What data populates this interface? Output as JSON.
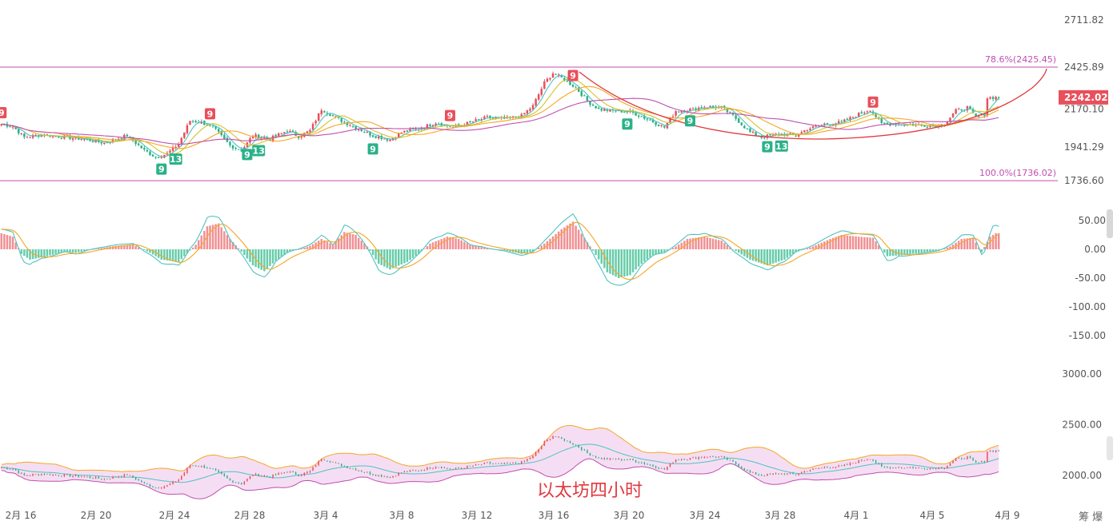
{
  "chart_data": [
    {
      "type": "candlestick",
      "title": "",
      "ylim": [
        1736.6,
        2711.82
      ],
      "yticks": [
        "2711.82",
        "2425.89",
        "2170.10",
        "1941.29",
        "1736.60"
      ],
      "current_price": "2242.02",
      "fib_levels": [
        {
          "label": "78.6%(2425.45)",
          "value": 2425.45
        },
        {
          "label": "100.0%(1736.02)",
          "value": 1736.02
        }
      ],
      "close_series_anchors": [
        [
          0,
          2080
        ],
        [
          4,
          2065
        ],
        [
          8,
          2000
        ],
        [
          14,
          2015
        ],
        [
          20,
          2005
        ],
        [
          28,
          1990
        ],
        [
          36,
          1965
        ],
        [
          44,
          2010
        ],
        [
          50,
          1920
        ],
        [
          54,
          1880
        ],
        [
          58,
          1900
        ],
        [
          62,
          1960
        ],
        [
          66,
          2100
        ],
        [
          70,
          2090
        ],
        [
          74,
          2060
        ],
        [
          80,
          1950
        ],
        [
          84,
          1920
        ],
        [
          88,
          2010
        ],
        [
          94,
          1990
        ],
        [
          100,
          2040
        ],
        [
          104,
          2005
        ],
        [
          108,
          2040
        ],
        [
          112,
          2170
        ],
        [
          116,
          2130
        ],
        [
          120,
          2090
        ],
        [
          124,
          2060
        ],
        [
          130,
          2010
        ],
        [
          136,
          1985
        ],
        [
          140,
          2030
        ],
        [
          146,
          2050
        ],
        [
          152,
          2090
        ],
        [
          158,
          2060
        ],
        [
          164,
          2090
        ],
        [
          170,
          2120
        ],
        [
          176,
          2110
        ],
        [
          182,
          2130
        ],
        [
          186,
          2190
        ],
        [
          190,
          2330
        ],
        [
          193,
          2390
        ],
        [
          197,
          2350
        ],
        [
          201,
          2300
        ],
        [
          205,
          2220
        ],
        [
          209,
          2170
        ],
        [
          214,
          2160
        ],
        [
          220,
          2155
        ],
        [
          226,
          2110
        ],
        [
          232,
          2060
        ],
        [
          236,
          2160
        ],
        [
          240,
          2165
        ],
        [
          246,
          2185
        ],
        [
          252,
          2180
        ],
        [
          256,
          2130
        ],
        [
          262,
          2030
        ],
        [
          266,
          2000
        ],
        [
          272,
          2020
        ],
        [
          278,
          2010
        ],
        [
          282,
          2050
        ],
        [
          288,
          2080
        ],
        [
          294,
          2090
        ],
        [
          300,
          2140
        ],
        [
          304,
          2170
        ],
        [
          308,
          2080
        ],
        [
          314,
          2080
        ],
        [
          320,
          2075
        ],
        [
          326,
          2070
        ],
        [
          330,
          2080
        ],
        [
          334,
          2160
        ],
        [
          338,
          2180
        ],
        [
          341,
          2120
        ],
        [
          344,
          2140
        ],
        [
          345,
          2240
        ],
        [
          348,
          2242
        ]
      ],
      "td_labels": [
        {
          "text": "9",
          "at": 0,
          "pos": "above"
        },
        {
          "text": "9",
          "at": 56,
          "pos": "below"
        },
        {
          "text": "13",
          "at": 61,
          "pos": "below"
        },
        {
          "text": "9",
          "at": 73,
          "pos": "above"
        },
        {
          "text": "9",
          "at": 86,
          "pos": "below"
        },
        {
          "text": "13",
          "at": 90,
          "pos": "below"
        },
        {
          "text": "9",
          "at": 130,
          "pos": "below"
        },
        {
          "text": "9",
          "at": 157,
          "pos": "above"
        },
        {
          "text": "9",
          "at": 200,
          "pos": "above"
        },
        {
          "text": "9",
          "at": 219,
          "pos": "below"
        },
        {
          "text": "9",
          "at": 241,
          "pos": "below"
        },
        {
          "text": "9",
          "at": 268,
          "pos": "below"
        },
        {
          "text": "13",
          "at": 273,
          "pos": "below"
        },
        {
          "text": "9",
          "at": 305,
          "pos": "above"
        }
      ]
    },
    {
      "type": "bar",
      "title": "",
      "ylim": [
        -150,
        50
      ],
      "yticks": [
        "50.00",
        "0.00",
        "-50.00",
        "-100.00",
        "-150.00"
      ],
      "histogram_anchors": [
        [
          0,
          28
        ],
        [
          4,
          22
        ],
        [
          7,
          -8
        ],
        [
          10,
          -18
        ],
        [
          16,
          -12
        ],
        [
          22,
          -4
        ],
        [
          26,
          -6
        ],
        [
          32,
          0
        ],
        [
          40,
          6
        ],
        [
          46,
          8
        ],
        [
          52,
          -6
        ],
        [
          56,
          -18
        ],
        [
          62,
          -22
        ],
        [
          68,
          8
        ],
        [
          72,
          40
        ],
        [
          76,
          45
        ],
        [
          80,
          18
        ],
        [
          84,
          -4
        ],
        [
          88,
          -28
        ],
        [
          92,
          -38
        ],
        [
          96,
          -20
        ],
        [
          100,
          -6
        ],
        [
          104,
          0
        ],
        [
          108,
          6
        ],
        [
          112,
          18
        ],
        [
          116,
          8
        ],
        [
          120,
          30
        ],
        [
          124,
          25
        ],
        [
          128,
          5
        ],
        [
          132,
          -25
        ],
        [
          136,
          -35
        ],
        [
          142,
          -22
        ],
        [
          146,
          -8
        ],
        [
          150,
          10
        ],
        [
          156,
          22
        ],
        [
          160,
          18
        ],
        [
          164,
          8
        ],
        [
          170,
          2
        ],
        [
          176,
          -2
        ],
        [
          182,
          -8
        ],
        [
          186,
          -4
        ],
        [
          190,
          10
        ],
        [
          196,
          35
        ],
        [
          200,
          48
        ],
        [
          204,
          20
        ],
        [
          208,
          -10
        ],
        [
          212,
          -40
        ],
        [
          216,
          -50
        ],
        [
          220,
          -45
        ],
        [
          224,
          -25
        ],
        [
          228,
          -10
        ],
        [
          232,
          -5
        ],
        [
          236,
          5
        ],
        [
          240,
          18
        ],
        [
          246,
          22
        ],
        [
          252,
          15
        ],
        [
          256,
          0
        ],
        [
          262,
          -18
        ],
        [
          268,
          -28
        ],
        [
          274,
          -18
        ],
        [
          278,
          -5
        ],
        [
          284,
          5
        ],
        [
          290,
          18
        ],
        [
          294,
          25
        ],
        [
          300,
          22
        ],
        [
          305,
          20
        ],
        [
          310,
          -12
        ],
        [
          316,
          -10
        ],
        [
          322,
          -6
        ],
        [
          328,
          -2
        ],
        [
          332,
          5
        ],
        [
          336,
          18
        ],
        [
          340,
          20
        ],
        [
          343,
          -5
        ],
        [
          346,
          22
        ],
        [
          348,
          28
        ]
      ]
    },
    {
      "type": "line",
      "title": "",
      "ylim": [
        2000,
        3000
      ],
      "yticks": [
        "3000.00",
        "2500.00",
        "2000.00"
      ],
      "caption": "以太坊四小时"
    }
  ],
  "xaxis": {
    "labels": [
      "2月 16",
      "2月 20",
      "2月 24",
      "2月 28",
      "3月 4",
      "3月 8",
      "3月 12",
      "3月 16",
      "3月 20",
      "3月 24",
      "3月 28",
      "4月 1",
      "4月 5",
      "4月 9"
    ]
  },
  "corner": {
    "label": "筹 爆"
  },
  "colors": {
    "up": "#e8505b",
    "down": "#2bb189",
    "ma_orange": "#f5a623",
    "ma_magenta": "#c04fb0",
    "ma_teal": "#2bb189",
    "ma_yellow": "#d4c22a",
    "fib": "#c04fb0",
    "price_tag_bg": "#e8505b",
    "arc": "#e0393e",
    "band_fill": "#f3d6f0"
  }
}
